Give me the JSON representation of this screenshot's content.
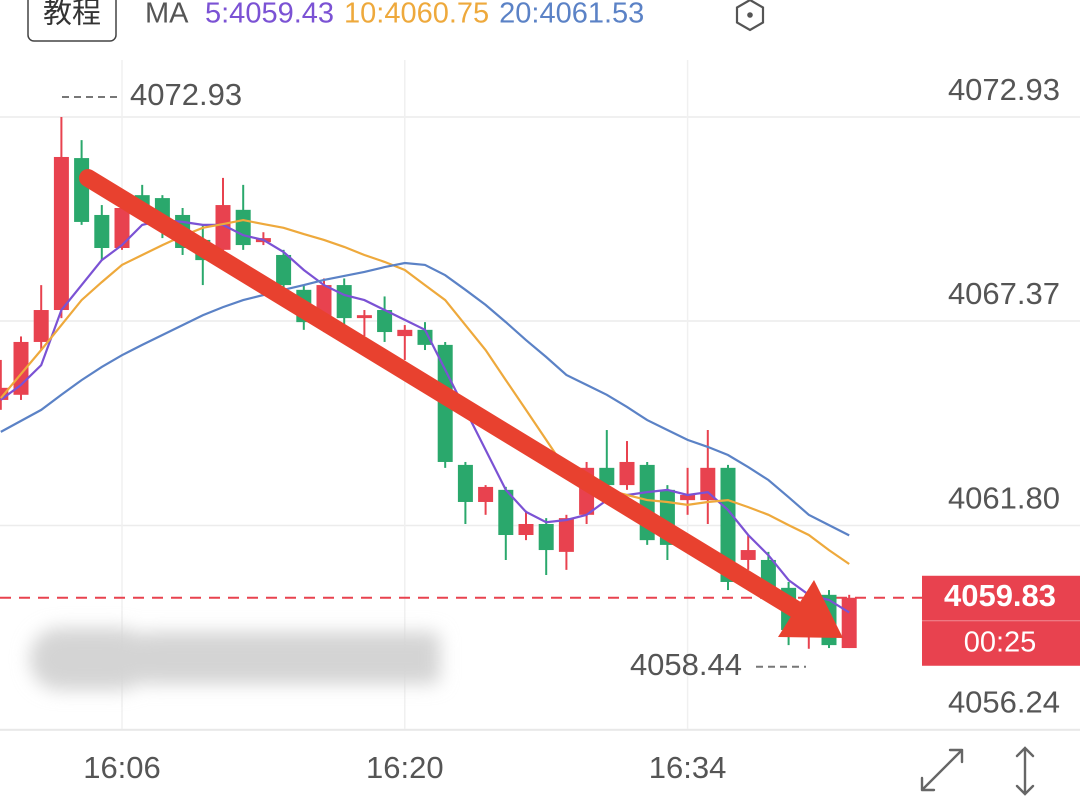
{
  "chart_data": {
    "type": "candlestick",
    "button": "教程",
    "indicator": "MA",
    "categories": [
      null,
      null,
      null,
      null,
      null,
      null,
      "16:06",
      null,
      null,
      null,
      null,
      null,
      null,
      null,
      null,
      null,
      null,
      null,
      null,
      null,
      "16:20",
      null,
      null,
      null,
      null,
      null,
      null,
      null,
      null,
      null,
      null,
      null,
      null,
      null,
      "16:34",
      null,
      null,
      null,
      null,
      null,
      null,
      null,
      null
    ],
    "open": [
      4065.22,
      4065.36,
      4066.8,
      4067.67,
      4071.81,
      4070.26,
      4069.36,
      4070.8,
      4070.72,
      4070.26,
      4069.58,
      4069.31,
      4070.4,
      4069.52,
      4069.17,
      4068.22,
      4067.26,
      4068.35,
      4067.45,
      4067.67,
      4066.96,
      4067.13,
      4066.72,
      4063.45,
      4062.44,
      4062.77,
      4061.54,
      4061.84,
      4061.08,
      4062.09,
      4063.37,
      4062.9,
      4063.45,
      4062.77,
      4062.49,
      4062.49,
      4063.37,
      4060.86,
      4060.86,
      4060.1,
      4059.22,
      4059.91,
      4058.46
    ],
    "high": [
      4066.31,
      4066.95,
      4068.35,
      4072.93,
      4072.3,
      4070.53,
      4070.72,
      4071.08,
      4070.8,
      4070.45,
      4069.99,
      4071.27,
      4071.08,
      4069.79,
      4069.31,
      4068.35,
      4068.53,
      4068.53,
      4067.67,
      4068.04,
      4067.26,
      4067.34,
      4066.8,
      4063.53,
      4062.9,
      4062.85,
      4062.2,
      4062.0,
      4062.09,
      4063.53,
      4064.4,
      4064.1,
      4063.53,
      4062.9,
      4063.37,
      4064.4,
      4063.45,
      4061.54,
      4061.08,
      4060.26,
      4059.91,
      4060.04,
      4059.91
    ],
    "low": [
      4064.95,
      4065.22,
      4066.58,
      4067.45,
      4069.99,
      4069.03,
      4069.31,
      4070.26,
      4069.63,
      4069.17,
      4068.35,
      4069.17,
      4069.31,
      4069.44,
      4068.22,
      4067.13,
      4067.07,
      4067.26,
      4066.96,
      4066.8,
      4066.31,
      4066.58,
      4063.37,
      4061.84,
      4062.09,
      4060.86,
      4061.4,
      4060.45,
      4060.59,
      4061.84,
      4062.77,
      4062.77,
      4061.27,
      4060.86,
      4062.09,
      4061.84,
      4060.04,
      4060.59,
      4059.91,
      4058.54,
      4058.44,
      4058.46,
      4058.46
    ],
    "close": [
      4065.55,
      4066.8,
      4067.67,
      4071.84,
      4070.07,
      4069.36,
      4070.45,
      4070.4,
      4069.99,
      4069.36,
      4069.03,
      4070.53,
      4069.44,
      4069.63,
      4068.35,
      4067.34,
      4068.35,
      4067.45,
      4067.53,
      4067.07,
      4067.13,
      4066.72,
      4063.53,
      4062.44,
      4062.85,
      4061.54,
      4061.84,
      4061.13,
      4062.0,
      4063.37,
      4062.9,
      4063.53,
      4061.4,
      4061.27,
      4062.63,
      4063.37,
      4060.26,
      4061.13,
      4060.04,
      4058.95,
      4059.63,
      4058.54,
      4059.83
    ],
    "up_color": "#e8424f",
    "down_color": "#2aa86c",
    "series": [
      {
        "name": "5:4059.43",
        "color": "#7b52d4",
        "values": [
          4065.22,
          4065.63,
          4066.17,
          4067.67,
          4068.35,
          4069.03,
          4069.44,
          4069.99,
          4070.12,
          4070.07,
          4069.99,
          4069.99,
          4069.71,
          4069.58,
          4069.25,
          4068.76,
          4068.35,
          4068.08,
          4067.94,
          4067.67,
          4067.4,
          4067.13,
          4066.04,
          4064.95,
          4063.86,
          4062.77,
          4062.17,
          4061.89,
          4061.95,
          4062.09,
          4062.49,
          4062.63,
          4062.71,
          4062.77,
          4062.63,
          4062.71,
          4062.22,
          4061.54,
          4060.99,
          4060.31,
          4059.91,
          4059.77,
          4059.43
        ]
      },
      {
        "name": "10:4060.75",
        "color": "#eea93c",
        "values": [
          4065.27,
          4065.93,
          4066.58,
          4067.26,
          4067.94,
          4068.43,
          4068.9,
          4069.17,
          4069.44,
          4069.69,
          4069.91,
          4070.01,
          4070.12,
          4070.01,
          4069.91,
          4069.74,
          4069.58,
          4069.39,
          4069.17,
          4068.98,
          4068.76,
          4068.35,
          4067.94,
          4067.26,
          4066.58,
          4065.76,
          4064.95,
          4064.13,
          4063.31,
          4063.04,
          4062.77,
          4062.63,
          4062.49,
          4062.44,
          4062.36,
          4062.44,
          4062.49,
          4062.3,
          4062.09,
          4061.81,
          4061.54,
          4061.13,
          4060.75
        ]
      },
      {
        "name": "20:4061.53",
        "color": "#5b82c6",
        "values": [
          4064.35,
          4064.65,
          4064.95,
          4065.36,
          4065.76,
          4066.12,
          4066.44,
          4066.72,
          4066.99,
          4067.26,
          4067.53,
          4067.75,
          4067.94,
          4068.08,
          4068.22,
          4068.35,
          4068.49,
          4068.6,
          4068.71,
          4068.84,
          4068.95,
          4068.9,
          4068.62,
          4068.22,
          4067.81,
          4067.34,
          4066.85,
          4066.39,
          4065.9,
          4065.63,
          4065.36,
          4065.03,
          4064.67,
          4064.4,
          4064.13,
          4063.94,
          4063.72,
          4063.39,
          4063.04,
          4062.57,
          4062.09,
          4061.81,
          4061.53
        ]
      }
    ],
    "ylim": [
      4055.9,
      4075.0
    ],
    "yticks": [
      4072.93,
      4067.37,
      {
        "value": 4061.8,
        "label": "4061.80"
      },
      4056.24
    ],
    "grid": true,
    "max_marker": 4072.93,
    "min_marker": 4058.44,
    "last_price": 4059.83,
    "countdown": "00:25"
  }
}
